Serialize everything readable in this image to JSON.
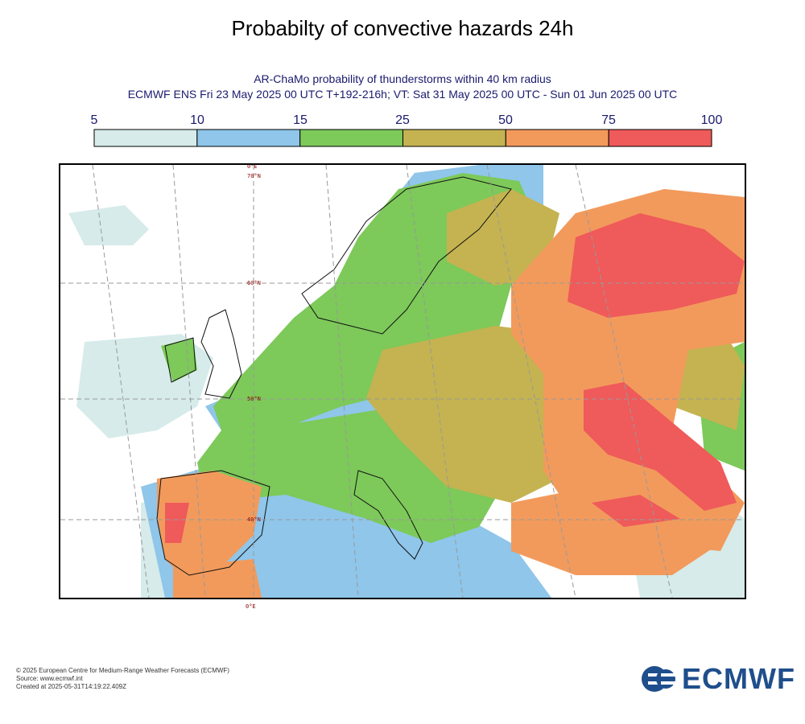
{
  "title": "Probabilty of convective hazards 24h",
  "subtitle_1": "AR-ChaMo probability of thunderstorms within 40 km radius",
  "subtitle_2": "ECMWF ENS Fri 23 May 2025 00 UTC T+192-216h; VT: Sat 31 May 2025 00 UTC - Sun 01 Jun 2025 00 UTC",
  "legend": {
    "ticks": [
      "5",
      "10",
      "15",
      "25",
      "50",
      "75",
      "100"
    ],
    "colors": [
      "#d6ebea",
      "#8fc6ea",
      "#7dc95a",
      "#c4b350",
      "#f29a5c",
      "#ef5a5a"
    ]
  },
  "map": {
    "grid_labels": {
      "top_lon": "0°E",
      "lat70": "70°N",
      "lat60": "60°N",
      "lat50": "50°N",
      "lat40": "40°N",
      "bottom_lon": "0°E"
    }
  },
  "footer": {
    "line1": "© 2025 European Centre for Medium-Range Weather Forecasts (ECMWF)",
    "line2": "Source: www.ecmwf.int",
    "line3": "Created at 2025-05-31T14:19:22.409Z"
  },
  "logo_text": "ECMWF"
}
